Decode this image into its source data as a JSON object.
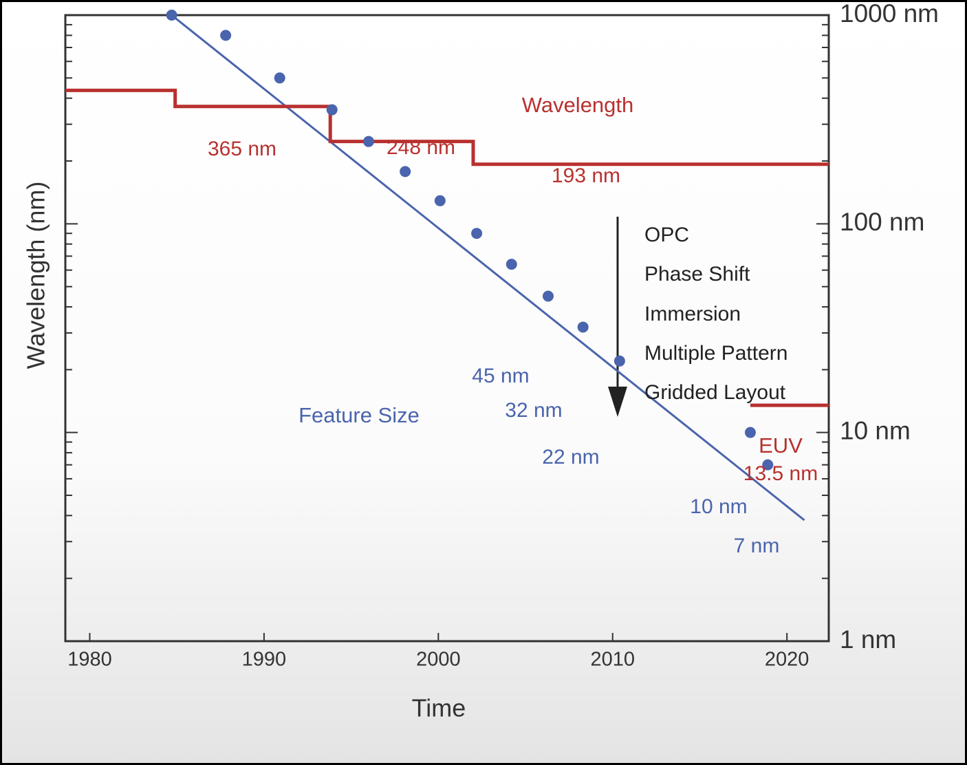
{
  "chart_data": {
    "type": "line",
    "x_label": "Time",
    "y_label": "Wavelength (nm)",
    "log_y": true,
    "xlim": [
      1978.6,
      2022.4
    ],
    "xticks": [
      1980,
      1990,
      2000,
      2010,
      2020
    ],
    "ylim": [
      1,
      1000
    ],
    "yticks": [
      {
        "value": 1000,
        "label": "1000 nm"
      },
      {
        "value": 100,
        "label": "100 nm"
      },
      {
        "value": 10,
        "label": "10 nm"
      },
      {
        "value": 1,
        "label": "1 nm"
      }
    ],
    "yticks_minor": [
      2,
      3,
      4,
      5,
      6,
      7,
      8,
      9,
      20,
      30,
      40,
      50,
      60,
      70,
      80,
      90,
      200,
      300,
      400,
      500,
      600,
      700,
      800,
      900
    ],
    "series": [
      {
        "name": "Wavelength",
        "color": "#b8312f",
        "style": "line",
        "x": [
          1978.6,
          1984.9,
          1984.9,
          1993.8,
          1993.8,
          2002.0,
          2002.0,
          2022.4
        ],
        "values": [
          436,
          436,
          365,
          365,
          248,
          248,
          193,
          193
        ]
      },
      {
        "name": "EUV",
        "color": "#b8312f",
        "style": "line",
        "x": [
          2017.9,
          2022.4
        ],
        "values": [
          13.5,
          13.5
        ]
      },
      {
        "name": "Feature Size",
        "color": "#4a64ad",
        "style": "points",
        "x": [
          1984.7,
          1987.8,
          1990.9,
          1993.9,
          1996.0,
          1998.1,
          2000.1,
          2002.2,
          2004.2,
          2006.3,
          2008.3,
          2010.4,
          2017.9,
          2018.9
        ],
        "values": [
          1000,
          800,
          500,
          352,
          248,
          178,
          129,
          90,
          64,
          45,
          32,
          22,
          10,
          7
        ]
      }
    ],
    "trend": {
      "color": "#4a64ad",
      "x": [
        1984.7,
        2021.0
      ],
      "values": [
        1000,
        3.8
      ]
    },
    "annotations": [
      "365 nm",
      "248 nm",
      "193 nm",
      "13.5 nm",
      "45 nm",
      "32 nm",
      "22 nm",
      "10 nm",
      "7 nm",
      "OPC",
      "Phase Shift",
      "Immersion",
      "Multiple Pattern",
      "Gridded Layout"
    ]
  }
}
